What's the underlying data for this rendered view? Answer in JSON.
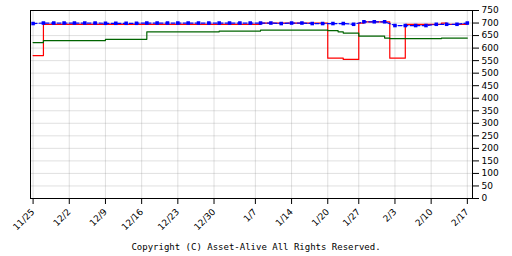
{
  "chart_data": {
    "type": "line",
    "annotation": "Copyright (C) Asset-Alive All Rights Reserved.",
    "xlim": [
      -0.5,
      85
    ],
    "xticks": [
      {
        "value": 0,
        "label": "11/25"
      },
      {
        "value": 7,
        "label": "12/2"
      },
      {
        "value": 14,
        "label": "12/9"
      },
      {
        "value": 21,
        "label": "12/16"
      },
      {
        "value": 28,
        "label": "12/23"
      },
      {
        "value": 35,
        "label": "12/30"
      },
      {
        "value": 43,
        "label": "1/7"
      },
      {
        "value": 50,
        "label": "1/14"
      },
      {
        "value": 57,
        "label": "1/20"
      },
      {
        "value": 63,
        "label": "1/27"
      },
      {
        "value": 70,
        "label": "2/3"
      },
      {
        "value": 77,
        "label": "2/10"
      },
      {
        "value": 84,
        "label": "2/17"
      }
    ],
    "ylim": [
      0,
      750
    ],
    "yticks": [
      0,
      50,
      100,
      150,
      200,
      250,
      300,
      350,
      400,
      450,
      500,
      550,
      600,
      650,
      700,
      750
    ],
    "grid": true,
    "series": [
      {
        "type": "step",
        "color": "red",
        "x": [
          0,
          1,
          2,
          3,
          4,
          5,
          6,
          7,
          8,
          9,
          10,
          11,
          12,
          13,
          14,
          15,
          16,
          17,
          18,
          19,
          20,
          21,
          22,
          23,
          24,
          25,
          26,
          27,
          28,
          29,
          30,
          31,
          32,
          33,
          34,
          35,
          36,
          37,
          38,
          39,
          40,
          41,
          42,
          43,
          44,
          45,
          46,
          47,
          48,
          49,
          50,
          51,
          52,
          53,
          54,
          55,
          56,
          57,
          58,
          59,
          60,
          61,
          62,
          63,
          64,
          65,
          66,
          67,
          68,
          69,
          70,
          71,
          72,
          73,
          74,
          75,
          76,
          77,
          78,
          79,
          80,
          81,
          82,
          83,
          84
        ],
        "values": [
          570,
          570,
          695,
          695,
          695,
          695,
          695,
          695,
          695,
          695,
          695,
          695,
          695,
          695,
          695,
          695,
          695,
          695,
          695,
          695,
          695,
          695,
          695,
          695,
          695,
          695,
          695,
          695,
          695,
          695,
          695,
          695,
          695,
          695,
          695,
          695,
          695,
          695,
          695,
          695,
          695,
          695,
          695,
          695,
          700,
          700,
          700,
          700,
          700,
          700,
          700,
          700,
          700,
          700,
          700,
          700,
          700,
          560,
          560,
          560,
          555,
          555,
          555,
          700,
          705,
          705,
          705,
          705,
          705,
          560,
          560,
          560,
          695,
          695,
          695,
          695,
          695,
          695,
          695,
          700,
          695,
          695,
          695,
          695,
          695
        ]
      },
      {
        "type": "step",
        "color": "darkgreen",
        "x": [
          0,
          1,
          2,
          3,
          4,
          5,
          6,
          7,
          8,
          9,
          10,
          11,
          12,
          13,
          14,
          15,
          16,
          17,
          18,
          19,
          20,
          21,
          22,
          23,
          24,
          25,
          26,
          27,
          28,
          29,
          30,
          31,
          32,
          33,
          34,
          35,
          36,
          37,
          38,
          39,
          40,
          41,
          42,
          43,
          44,
          45,
          46,
          47,
          48,
          49,
          50,
          51,
          52,
          53,
          54,
          55,
          56,
          57,
          58,
          59,
          60,
          61,
          62,
          63,
          64,
          65,
          66,
          67,
          68,
          69,
          70,
          71,
          72,
          73,
          74,
          75,
          76,
          77,
          78,
          79,
          80,
          81,
          82,
          83,
          84
        ],
        "values": [
          622,
          622,
          630,
          630,
          630,
          630,
          630,
          630,
          630,
          630,
          630,
          630,
          630,
          630,
          635,
          635,
          635,
          635,
          635,
          635,
          635,
          635,
          665,
          665,
          665,
          665,
          665,
          665,
          665,
          665,
          665,
          665,
          665,
          665,
          665,
          665,
          668,
          668,
          668,
          668,
          668,
          668,
          668,
          668,
          672,
          672,
          672,
          672,
          672,
          672,
          672,
          672,
          672,
          672,
          672,
          672,
          672,
          670,
          670,
          665,
          660,
          660,
          660,
          648,
          648,
          648,
          648,
          648,
          640,
          638,
          638,
          638,
          638,
          638,
          638,
          638,
          638,
          638,
          638,
          640,
          640,
          640,
          640,
          640,
          640
        ]
      },
      {
        "type": "line",
        "color": "blue",
        "line_style": "dashed",
        "marker": "square",
        "x": [
          0,
          2,
          4,
          6,
          8,
          10,
          12,
          14,
          16,
          18,
          20,
          22,
          24,
          26,
          28,
          30,
          32,
          34,
          36,
          38,
          40,
          42,
          44,
          46,
          48,
          50,
          52,
          54,
          56,
          58,
          60,
          62,
          64,
          66,
          68,
          70,
          72,
          74,
          76,
          78,
          80,
          82,
          84
        ],
        "values": [
          698,
          700,
          700,
          700,
          700,
          700,
          700,
          699,
          699,
          699,
          699,
          700,
          700,
          700,
          700,
          700,
          700,
          700,
          700,
          700,
          700,
          700,
          700,
          700,
          698,
          700,
          700,
          698,
          698,
          698,
          698,
          695,
          705,
          705,
          705,
          690,
          690,
          690,
          690,
          695,
          695,
          695,
          700
        ]
      }
    ]
  }
}
